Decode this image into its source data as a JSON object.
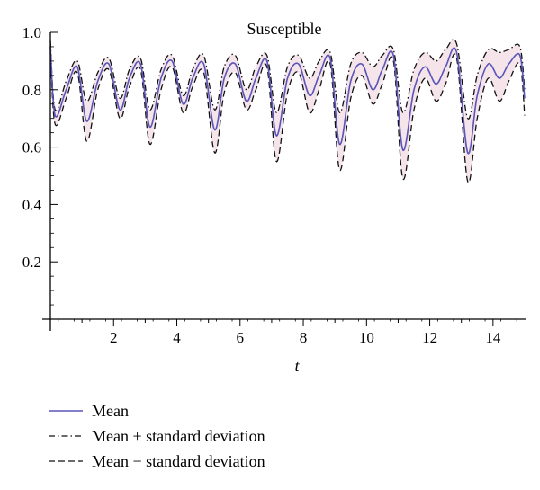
{
  "chart_data": {
    "type": "line",
    "title": "Susceptible",
    "xlabel": "t",
    "ylabel": "",
    "xlim": [
      0,
      15.2
    ],
    "ylim": [
      0.0,
      1.0
    ],
    "x_ticks": [
      2,
      4,
      6,
      8,
      10,
      12,
      14
    ],
    "y_ticks": [
      0.2,
      0.4,
      0.6,
      0.8,
      1.0
    ],
    "x_tick_labels": [
      "2",
      "4",
      "6",
      "8",
      "10",
      "12",
      "14"
    ],
    "y_tick_labels": [
      "0.2",
      "0.4",
      "0.6",
      "0.8",
      "1.0"
    ],
    "grid": false,
    "legend_position": "bottom-left",
    "colors": {
      "mean": "#5a55b8",
      "band_fill": "#f5e4ea",
      "bounds": "#111111",
      "axis": "#000000"
    },
    "series": [
      {
        "name": "Mean",
        "style": "solid",
        "x": [
          0.0,
          0.15,
          0.5,
          0.85,
          1.15,
          1.5,
          1.85,
          2.2,
          2.5,
          2.85,
          3.15,
          3.5,
          3.85,
          4.2,
          4.5,
          4.85,
          5.2,
          5.5,
          5.85,
          6.2,
          6.5,
          6.85,
          7.15,
          7.5,
          7.85,
          8.2,
          8.5,
          8.85,
          9.15,
          9.5,
          9.85,
          10.2,
          10.5,
          10.85,
          11.15,
          11.5,
          11.85,
          12.2,
          12.5,
          12.85,
          13.2,
          13.5,
          13.85,
          14.2,
          14.5,
          14.85,
          15.0
        ],
        "y": [
          0.95,
          0.71,
          0.8,
          0.88,
          0.69,
          0.83,
          0.89,
          0.73,
          0.84,
          0.89,
          0.67,
          0.84,
          0.9,
          0.75,
          0.84,
          0.89,
          0.66,
          0.84,
          0.89,
          0.76,
          0.84,
          0.9,
          0.64,
          0.84,
          0.89,
          0.78,
          0.85,
          0.91,
          0.61,
          0.83,
          0.89,
          0.8,
          0.87,
          0.92,
          0.59,
          0.8,
          0.88,
          0.82,
          0.88,
          0.93,
          0.58,
          0.78,
          0.89,
          0.84,
          0.89,
          0.92,
          0.77
        ]
      },
      {
        "name": "Mean + standard deviation",
        "style": "dash-dot",
        "x": [
          0.0,
          0.15,
          0.5,
          0.85,
          1.15,
          1.5,
          1.85,
          2.2,
          2.5,
          2.85,
          3.15,
          3.5,
          3.85,
          4.2,
          4.5,
          4.85,
          5.2,
          5.5,
          5.85,
          6.2,
          6.5,
          6.85,
          7.15,
          7.5,
          7.85,
          8.2,
          8.5,
          8.85,
          9.15,
          9.5,
          9.85,
          10.2,
          10.5,
          10.85,
          11.15,
          11.5,
          11.85,
          12.2,
          12.5,
          12.85,
          13.2,
          13.5,
          13.85,
          14.2,
          14.5,
          14.85,
          15.0
        ],
        "y": [
          0.97,
          0.73,
          0.83,
          0.9,
          0.76,
          0.86,
          0.91,
          0.77,
          0.87,
          0.91,
          0.73,
          0.87,
          0.92,
          0.78,
          0.87,
          0.92,
          0.73,
          0.88,
          0.92,
          0.8,
          0.88,
          0.92,
          0.72,
          0.88,
          0.92,
          0.84,
          0.9,
          0.93,
          0.72,
          0.89,
          0.93,
          0.88,
          0.92,
          0.94,
          0.72,
          0.87,
          0.93,
          0.9,
          0.94,
          0.96,
          0.7,
          0.85,
          0.94,
          0.93,
          0.94,
          0.95,
          0.8
        ]
      },
      {
        "name": "Mean − standard deviation",
        "style": "dashed",
        "x": [
          0.0,
          0.15,
          0.5,
          0.85,
          1.15,
          1.5,
          1.85,
          2.2,
          2.5,
          2.85,
          3.15,
          3.5,
          3.85,
          4.2,
          4.5,
          4.85,
          5.2,
          5.5,
          5.85,
          6.2,
          6.5,
          6.85,
          7.15,
          7.5,
          7.85,
          8.2,
          8.5,
          8.85,
          9.15,
          9.5,
          9.85,
          10.2,
          10.5,
          10.85,
          11.15,
          11.5,
          11.85,
          12.2,
          12.5,
          12.85,
          13.2,
          13.5,
          13.85,
          14.2,
          14.5,
          14.85,
          15.0
        ],
        "y": [
          0.93,
          0.68,
          0.77,
          0.86,
          0.62,
          0.8,
          0.87,
          0.7,
          0.81,
          0.87,
          0.61,
          0.8,
          0.88,
          0.72,
          0.81,
          0.86,
          0.58,
          0.79,
          0.86,
          0.73,
          0.8,
          0.88,
          0.55,
          0.79,
          0.86,
          0.72,
          0.8,
          0.89,
          0.52,
          0.77,
          0.85,
          0.75,
          0.82,
          0.9,
          0.49,
          0.73,
          0.84,
          0.76,
          0.82,
          0.91,
          0.48,
          0.7,
          0.84,
          0.76,
          0.83,
          0.89,
          0.71
        ]
      }
    ]
  }
}
